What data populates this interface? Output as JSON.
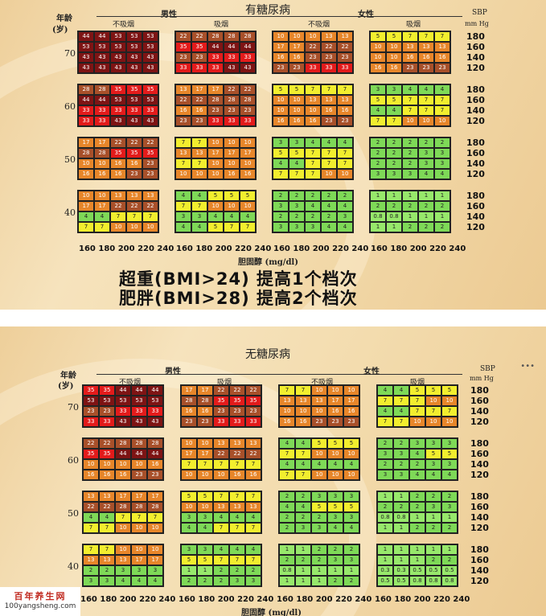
{
  "panel_diabetes": {
    "title": "有糖尿病",
    "male": "男性",
    "female": "女性",
    "non_smoke": "不吸烟",
    "smoke": "吸烟",
    "age_label": "年龄",
    "age_unit": "(岁)",
    "sbp": "SBP",
    "sbp_unit": "mm Hg",
    "ages": [
      "70",
      "60",
      "50",
      "40"
    ],
    "sbp_values": [
      "180",
      "160",
      "140",
      "120"
    ],
    "chol_ticks": "160 180 200 220 240",
    "chol_label": "胆固醇 (mg/dl)",
    "note1": "超重(BMI>24)  提高1个档次",
    "note2": "肥胖(BMI>28)  提高2个档次"
  },
  "panel_no_diabetes": {
    "title": "无糖尿病",
    "male": "男性",
    "female": "女性",
    "non_smoke": "不吸烟",
    "smoke": "吸烟",
    "age_label": "年龄",
    "age_unit": "(岁)",
    "sbp": "SBP",
    "sbp_unit": "mm Hg",
    "ages": [
      "70",
      "60",
      "50",
      "40"
    ],
    "sbp_values": [
      "180",
      "160",
      "140",
      "120"
    ],
    "chol_ticks": "160 180 200 220 240",
    "chol_label": "胆固醇 (mg/dl)"
  },
  "colors": {
    "c0": "#7e1414",
    "c1": "#e31b1b",
    "c2": "#a8502a",
    "c3": "#e7862a",
    "c4": "#f2ee2e",
    "c5": "#7ed957",
    "c6": "#97e86b"
  },
  "grids_diabetes": [
    [
      [
        [
          "44",
          "44",
          "53",
          "53",
          "53"
        ],
        [
          "53",
          "53",
          "53",
          "53",
          "53"
        ],
        [
          "43",
          "43",
          "43",
          "43",
          "43"
        ],
        [
          "43",
          "43",
          "43",
          "43",
          "43"
        ]
      ],
      [
        [
          "22",
          "22",
          "28",
          "28",
          "28"
        ],
        [
          "35",
          "35",
          "44",
          "44",
          "44"
        ],
        [
          "23",
          "23",
          "33",
          "33",
          "33"
        ],
        [
          "33",
          "33",
          "33",
          "43",
          "43"
        ]
      ],
      [
        [
          "10",
          "10",
          "10",
          "13",
          "13"
        ],
        [
          "17",
          "17",
          "22",
          "22",
          "22"
        ],
        [
          "16",
          "16",
          "23",
          "23",
          "23"
        ],
        [
          "23",
          "23",
          "33",
          "33",
          "33"
        ]
      ],
      [
        [
          "5",
          "5",
          "7",
          "7",
          "7"
        ],
        [
          "10",
          "10",
          "13",
          "13",
          "13"
        ],
        [
          "10",
          "10",
          "16",
          "16",
          "16"
        ],
        [
          "16",
          "16",
          "23",
          "23",
          "23"
        ]
      ]
    ],
    [
      [
        [
          "28",
          "28",
          "35",
          "35",
          "35"
        ],
        [
          "44",
          "44",
          "53",
          "53",
          "53"
        ],
        [
          "33",
          "33",
          "33",
          "33",
          "33"
        ],
        [
          "33",
          "33",
          "43",
          "43",
          "43"
        ]
      ],
      [
        [
          "13",
          "17",
          "17",
          "22",
          "22"
        ],
        [
          "22",
          "22",
          "28",
          "28",
          "28"
        ],
        [
          "16",
          "16",
          "23",
          "23",
          "23"
        ],
        [
          "23",
          "23",
          "33",
          "33",
          "33"
        ]
      ],
      [
        [
          "5",
          "5",
          "7",
          "7",
          "7"
        ],
        [
          "10",
          "10",
          "13",
          "13",
          "13"
        ],
        [
          "10",
          "10",
          "10",
          "16",
          "16"
        ],
        [
          "16",
          "16",
          "16",
          "23",
          "23"
        ]
      ],
      [
        [
          "3",
          "3",
          "4",
          "4",
          "4"
        ],
        [
          "5",
          "5",
          "7",
          "7",
          "7"
        ],
        [
          "4",
          "4",
          "7",
          "7",
          "7"
        ],
        [
          "7",
          "7",
          "10",
          "10",
          "10"
        ]
      ]
    ],
    [
      [
        [
          "17",
          "17",
          "22",
          "22",
          "22"
        ],
        [
          "28",
          "28",
          "35",
          "35",
          "35"
        ],
        [
          "10",
          "10",
          "16",
          "16",
          "23"
        ],
        [
          "16",
          "16",
          "16",
          "23",
          "23"
        ]
      ],
      [
        [
          "7",
          "7",
          "10",
          "10",
          "10"
        ],
        [
          "13",
          "13",
          "17",
          "17",
          "17"
        ],
        [
          "7",
          "7",
          "10",
          "10",
          "10"
        ],
        [
          "10",
          "10",
          "10",
          "16",
          "16"
        ]
      ],
      [
        [
          "3",
          "3",
          "4",
          "4",
          "4"
        ],
        [
          "5",
          "5",
          "7",
          "7",
          "7"
        ],
        [
          "4",
          "4",
          "7",
          "7",
          "7"
        ],
        [
          "7",
          "7",
          "7",
          "10",
          "10"
        ]
      ],
      [
        [
          "2",
          "2",
          "2",
          "2",
          "2"
        ],
        [
          "2",
          "2",
          "2",
          "3",
          "3"
        ],
        [
          "2",
          "2",
          "2",
          "3",
          "3"
        ],
        [
          "3",
          "3",
          "3",
          "4",
          "4"
        ]
      ]
    ],
    [
      [
        [
          "10",
          "10",
          "13",
          "13",
          "13"
        ],
        [
          "17",
          "17",
          "22",
          "22",
          "22"
        ],
        [
          "4",
          "4",
          "7",
          "7",
          "7"
        ],
        [
          "7",
          "7",
          "10",
          "10",
          "10"
        ]
      ],
      [
        [
          "4",
          "4",
          "5",
          "5",
          "5"
        ],
        [
          "7",
          "7",
          "10",
          "10",
          "10"
        ],
        [
          "3",
          "3",
          "4",
          "4",
          "4"
        ],
        [
          "4",
          "4",
          "5",
          "7",
          "7"
        ]
      ],
      [
        [
          "2",
          "2",
          "2",
          "2",
          "2"
        ],
        [
          "3",
          "3",
          "4",
          "4",
          "4"
        ],
        [
          "2",
          "2",
          "2",
          "2",
          "3"
        ],
        [
          "3",
          "3",
          "3",
          "4",
          "4"
        ]
      ],
      [
        [
          "1",
          "1",
          "1",
          "1",
          "1"
        ],
        [
          "2",
          "2",
          "2",
          "2",
          "2"
        ],
        [
          "0.8",
          "0.8",
          "1",
          "1",
          "1"
        ],
        [
          "1",
          "1",
          "2",
          "2",
          "2"
        ]
      ]
    ]
  ],
  "grids_no_diabetes": [
    [
      [
        [
          "35",
          "35",
          "44",
          "44",
          "44"
        ],
        [
          "53",
          "53",
          "53",
          "53",
          "53"
        ],
        [
          "23",
          "23",
          "33",
          "33",
          "33"
        ],
        [
          "33",
          "33",
          "43",
          "43",
          "43"
        ]
      ],
      [
        [
          "17",
          "17",
          "22",
          "22",
          "22"
        ],
        [
          "28",
          "28",
          "35",
          "35",
          "35"
        ],
        [
          "16",
          "16",
          "23",
          "23",
          "23"
        ],
        [
          "23",
          "23",
          "33",
          "33",
          "33"
        ]
      ],
      [
        [
          "7",
          "7",
          "10",
          "10",
          "10"
        ],
        [
          "13",
          "13",
          "13",
          "17",
          "17"
        ],
        [
          "10",
          "10",
          "10",
          "16",
          "16"
        ],
        [
          "16",
          "16",
          "23",
          "23",
          "23"
        ]
      ],
      [
        [
          "4",
          "4",
          "5",
          "5",
          "5"
        ],
        [
          "7",
          "7",
          "7",
          "10",
          "10"
        ],
        [
          "4",
          "4",
          "7",
          "7",
          "7"
        ],
        [
          "7",
          "7",
          "10",
          "10",
          "10"
        ]
      ]
    ],
    [
      [
        [
          "22",
          "22",
          "28",
          "28",
          "28"
        ],
        [
          "35",
          "35",
          "44",
          "44",
          "44"
        ],
        [
          "10",
          "10",
          "10",
          "10",
          "16"
        ],
        [
          "16",
          "16",
          "16",
          "23",
          "23"
        ]
      ],
      [
        [
          "10",
          "10",
          "13",
          "13",
          "13"
        ],
        [
          "17",
          "17",
          "22",
          "22",
          "22"
        ],
        [
          "7",
          "7",
          "7",
          "7",
          "7"
        ],
        [
          "10",
          "10",
          "10",
          "16",
          "16"
        ]
      ],
      [
        [
          "4",
          "4",
          "5",
          "5",
          "5"
        ],
        [
          "7",
          "7",
          "10",
          "10",
          "10"
        ],
        [
          "4",
          "4",
          "4",
          "4",
          "4"
        ],
        [
          "7",
          "7",
          "10",
          "10",
          "10"
        ]
      ],
      [
        [
          "2",
          "2",
          "3",
          "3",
          "3"
        ],
        [
          "3",
          "3",
          "4",
          "5",
          "5"
        ],
        [
          "2",
          "2",
          "2",
          "3",
          "3"
        ],
        [
          "3",
          "3",
          "4",
          "4",
          "4"
        ]
      ]
    ],
    [
      [
        [
          "13",
          "13",
          "17",
          "17",
          "17"
        ],
        [
          "22",
          "22",
          "28",
          "28",
          "28"
        ],
        [
          "4",
          "4",
          "7",
          "7",
          "7"
        ],
        [
          "7",
          "7",
          "10",
          "10",
          "10"
        ]
      ],
      [
        [
          "5",
          "5",
          "7",
          "7",
          "7"
        ],
        [
          "10",
          "10",
          "13",
          "13",
          "13"
        ],
        [
          "3",
          "3",
          "4",
          "4",
          "4"
        ],
        [
          "4",
          "4",
          "7",
          "7",
          "7"
        ]
      ],
      [
        [
          "2",
          "2",
          "3",
          "3",
          "3"
        ],
        [
          "4",
          "4",
          "5",
          "5",
          "5"
        ],
        [
          "2",
          "2",
          "2",
          "3",
          "3"
        ],
        [
          "2",
          "3",
          "3",
          "4",
          "4"
        ]
      ],
      [
        [
          "1",
          "1",
          "2",
          "2",
          "2"
        ],
        [
          "2",
          "2",
          "2",
          "3",
          "3"
        ],
        [
          "0.8",
          "0.8",
          "1",
          "1",
          "1"
        ],
        [
          "1",
          "1",
          "2",
          "2",
          "2"
        ]
      ]
    ],
    [
      [
        [
          "7",
          "7",
          "10",
          "10",
          "10"
        ],
        [
          "13",
          "13",
          "13",
          "17",
          "17"
        ],
        [
          "2",
          "2",
          "3",
          "3",
          "3"
        ],
        [
          "3",
          "3",
          "4",
          "4",
          "4"
        ]
      ],
      [
        [
          "3",
          "3",
          "4",
          "4",
          "4"
        ],
        [
          "5",
          "5",
          "7",
          "7",
          "7"
        ],
        [
          "1",
          "1",
          "2",
          "2",
          "2"
        ],
        [
          "2",
          "2",
          "2",
          "3",
          "3"
        ]
      ],
      [
        [
          "1",
          "1",
          "2",
          "2",
          "2"
        ],
        [
          "2",
          "2",
          "2",
          "3",
          "3"
        ],
        [
          "0.8",
          "1",
          "1",
          "1",
          "1"
        ],
        [
          "1",
          "1",
          "1",
          "2",
          "2"
        ]
      ],
      [
        [
          "1",
          "1",
          "1",
          "1",
          "1"
        ],
        [
          "1",
          "1",
          "1",
          "2",
          "2"
        ],
        [
          "0.3",
          "0.3",
          "0.5",
          "0.5",
          "0.5"
        ],
        [
          "0.5",
          "0.5",
          "0.8",
          "0.8",
          "0.8"
        ]
      ]
    ]
  ],
  "watermark": {
    "site_cn": "百年养生网",
    "site_url": "100yangsheng.com"
  }
}
